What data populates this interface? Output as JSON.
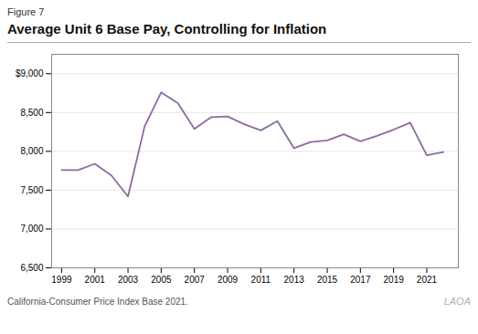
{
  "chart_data": {
    "type": "line",
    "title": "Average Unit 6 Base Pay, Controlling for Inflation",
    "annotations": [
      "Figure 7",
      "California-Consumer Price Index Base 2021.",
      "LAOA"
    ],
    "x": [
      1999,
      2000,
      2001,
      2002,
      2003,
      2004,
      2005,
      2006,
      2007,
      2008,
      2009,
      2010,
      2011,
      2012,
      2013,
      2014,
      2015,
      2016,
      2017,
      2018,
      2019,
      2020,
      2021,
      2022
    ],
    "values": [
      7760,
      7760,
      7840,
      7690,
      7420,
      8320,
      8760,
      8620,
      8290,
      8440,
      8450,
      8350,
      8270,
      8390,
      8040,
      8120,
      8140,
      8220,
      8130,
      8200,
      8280,
      8370,
      7950,
      7990
    ],
    "color": "#8b6b9c",
    "xlim": [
      1998.4,
      2022.9
    ],
    "xticks": [
      1999,
      2001,
      2003,
      2005,
      2007,
      2009,
      2011,
      2013,
      2015,
      2017,
      2019,
      2021
    ],
    "ylim": [
      6500,
      9250
    ],
    "yticks": [
      {
        "value": 6500,
        "label": "6,500"
      },
      {
        "value": 7000,
        "label": "7,000"
      },
      {
        "value": 7500,
        "label": "7,500"
      },
      {
        "value": 8000,
        "label": "8,000"
      },
      {
        "value": 8500,
        "label": "8,500"
      },
      {
        "value": 9000,
        "label": "$9,000"
      }
    ],
    "grid": true
  }
}
